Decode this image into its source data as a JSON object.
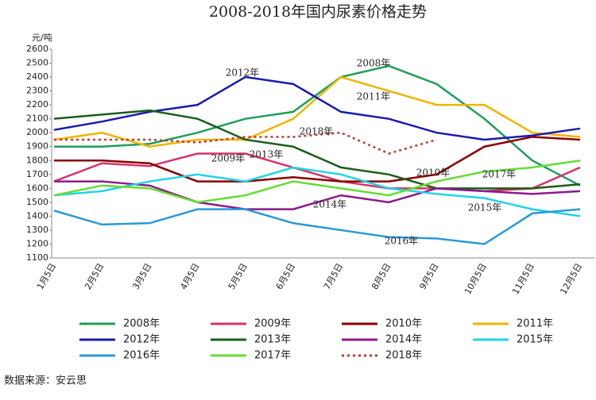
{
  "chart_data": {
    "type": "line",
    "title": "2008-2018年国内尿素价格走势",
    "y_label": "元/吨",
    "source": "数据来源：安云思",
    "categories": [
      "1月5日",
      "2月5日",
      "3月5日",
      "4月5日",
      "5月5日",
      "6月5日",
      "7月5日",
      "8月5日",
      "9月5日",
      "10月5日",
      "11月5日",
      "12月5日"
    ],
    "ylim": [
      1100,
      2600
    ],
    "yticks": [
      1100,
      1200,
      1300,
      1400,
      1500,
      1600,
      1700,
      1800,
      1900,
      2000,
      2100,
      2200,
      2300,
      2400,
      2500,
      2600
    ],
    "grid": false,
    "legend": "bottom",
    "annotations": [
      "2008年",
      "2012年",
      "2011年",
      "2018年",
      "2009年",
      "2013年",
      "2010年",
      "2017年",
      "2014年",
      "2015年",
      "2016年"
    ],
    "series": [
      {
        "name": "2008年",
        "color": "#1f9e5a",
        "values": [
          1900,
          1900,
          1920,
          2000,
          2100,
          2150,
          2400,
          2480,
          2350,
          2100,
          1800,
          1620
        ]
      },
      {
        "name": "2009年",
        "color": "#d6336c",
        "values": [
          1650,
          1780,
          1760,
          1850,
          1850,
          1750,
          1650,
          1600,
          1600,
          1580,
          1600,
          1750
        ]
      },
      {
        "name": "2010年",
        "color": "#8b0000",
        "values": [
          1800,
          1800,
          1780,
          1650,
          1650,
          1680,
          1650,
          1650,
          1700,
          1900,
          1970,
          1950
        ]
      },
      {
        "name": "2011年",
        "color": "#f0b400",
        "values": [
          1950,
          2000,
          1900,
          1950,
          1950,
          2100,
          2400,
          2300,
          2200,
          2200,
          2000,
          1970
        ]
      },
      {
        "name": "2012年",
        "color": "#1a1ab0",
        "values": [
          2020,
          2080,
          2150,
          2200,
          2400,
          2350,
          2150,
          2100,
          2000,
          1950,
          1980,
          2030
        ]
      },
      {
        "name": "2013年",
        "color": "#1a5e1a",
        "values": [
          2100,
          2130,
          2160,
          2100,
          1950,
          1900,
          1750,
          1700,
          1600,
          1600,
          1600,
          1630
        ]
      },
      {
        "name": "2014年",
        "color": "#8b1a8b",
        "values": [
          1650,
          1650,
          1620,
          1500,
          1450,
          1450,
          1550,
          1500,
          1600,
          1580,
          1560,
          1580
        ]
      },
      {
        "name": "2015年",
        "color": "#22d3e6",
        "values": [
          1550,
          1580,
          1650,
          1700,
          1650,
          1750,
          1700,
          1600,
          1560,
          1530,
          1450,
          1400
        ]
      },
      {
        "name": "2016年",
        "color": "#2a9ad6",
        "values": [
          1440,
          1340,
          1350,
          1450,
          1450,
          1350,
          1300,
          1250,
          1240,
          1200,
          1420,
          1450
        ]
      },
      {
        "name": "2017年",
        "color": "#66dd33",
        "values": [
          1550,
          1620,
          1600,
          1500,
          1550,
          1650,
          1600,
          1550,
          1650,
          1720,
          1750,
          1800
        ]
      },
      {
        "name": "2018年",
        "color": "#c0392b",
        "dashed": true,
        "values": [
          1950,
          1950,
          1950,
          1930,
          1970,
          1970,
          2000,
          1850,
          1950,
          null,
          null,
          null
        ]
      }
    ]
  }
}
